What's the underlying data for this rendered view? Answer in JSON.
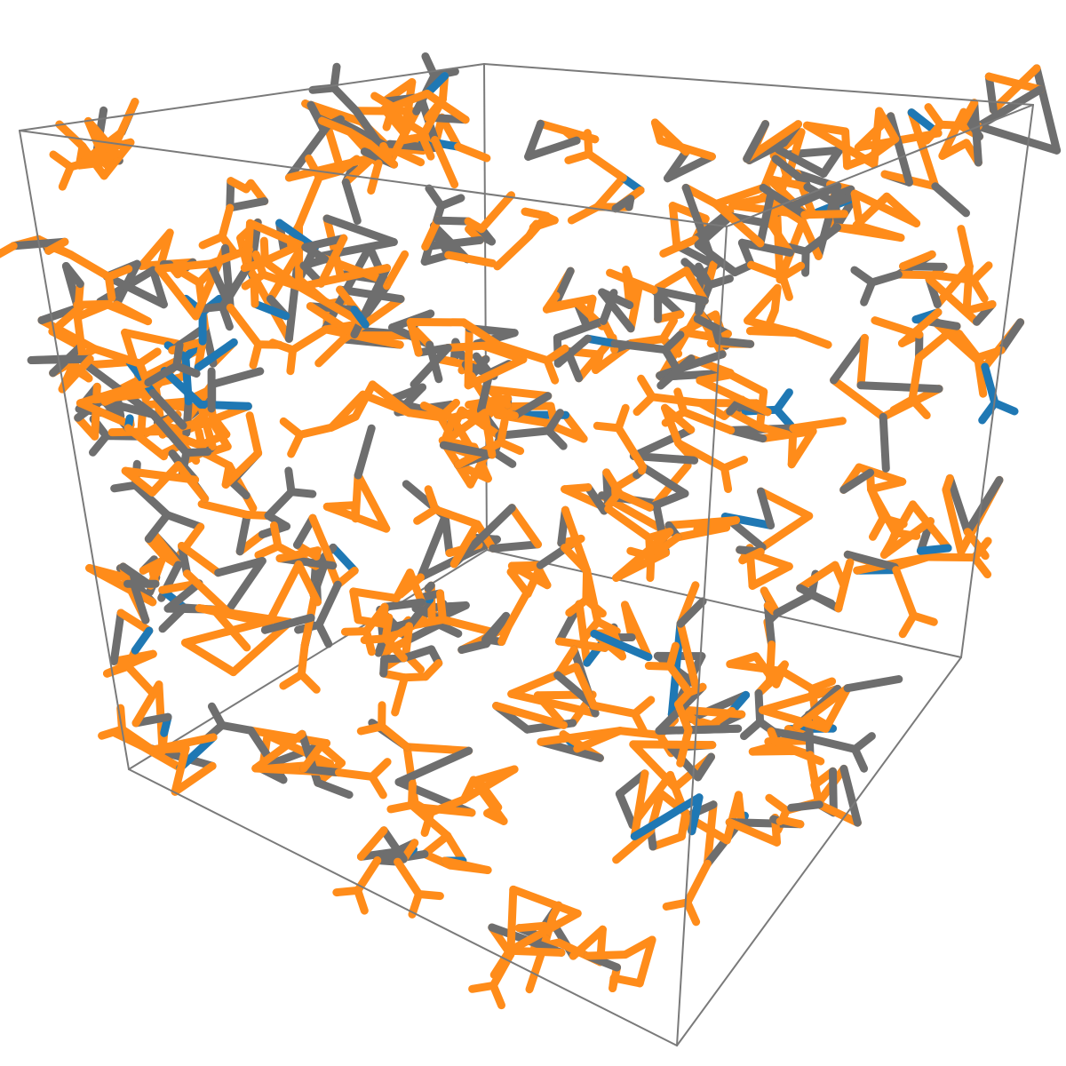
{
  "scene": {
    "description_type": "molecular-structure-render",
    "background_color": "#ffffff",
    "cell_color": "#7a7a7a",
    "element_colors": {
      "primary": "#ff8c1a",
      "secondary": "#6e6e6e",
      "minor": "#1f78b4"
    },
    "composition": {
      "primary": 0.62,
      "secondary": 0.34,
      "minor": 0.04
    }
  }
}
